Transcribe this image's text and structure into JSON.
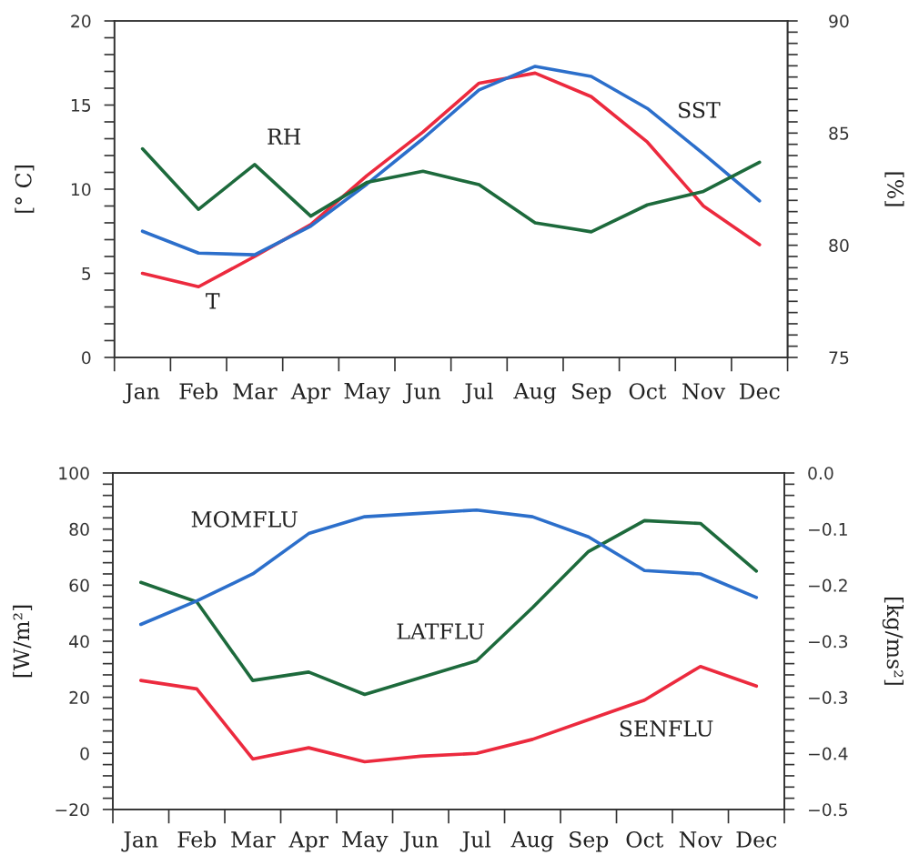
{
  "chart_data": [
    {
      "type": "line",
      "categories": [
        "Jan",
        "Feb",
        "Mar",
        "Apr",
        "May",
        "Jun",
        "Jul",
        "Aug",
        "Sep",
        "Oct",
        "Nov",
        "Dec"
      ],
      "ylabel": "[° C]",
      "y2label": "[%]",
      "ylim": [
        0,
        20
      ],
      "yticks": [
        0,
        {
          "value": 1,
          "label": null
        },
        {
          "value": 2,
          "label": null
        },
        {
          "value": 3,
          "label": null
        },
        {
          "value": 4,
          "label": null
        },
        5,
        {
          "value": 6,
          "label": null
        },
        {
          "value": 7,
          "label": null
        },
        {
          "value": 8,
          "label": null
        },
        {
          "value": 9,
          "label": null
        },
        10,
        {
          "value": 11,
          "label": null
        },
        {
          "value": 12,
          "label": null
        },
        {
          "value": 13,
          "label": null
        },
        {
          "value": 14,
          "label": null
        },
        15,
        {
          "value": 16,
          "label": null
        },
        {
          "value": 17,
          "label": null
        },
        {
          "value": 18,
          "label": null
        },
        {
          "value": 19,
          "label": null
        },
        20
      ],
      "y2lim": [
        75,
        90
      ],
      "y2ticks": [
        75,
        {
          "value": 75.5,
          "label": null
        },
        {
          "value": 76,
          "label": null
        },
        {
          "value": 76.5,
          "label": null
        },
        {
          "value": 77,
          "label": null
        },
        {
          "value": 77.5,
          "label": null
        },
        {
          "value": 78,
          "label": null
        },
        {
          "value": 78.5,
          "label": null
        },
        {
          "value": 79,
          "label": null
        },
        {
          "value": 79.5,
          "label": null
        },
        80,
        {
          "value": 80.5,
          "label": null
        },
        {
          "value": 81,
          "label": null
        },
        {
          "value": 81.5,
          "label": null
        },
        {
          "value": 82,
          "label": null
        },
        {
          "value": 82.5,
          "label": null
        },
        {
          "value": 83,
          "label": null
        },
        {
          "value": 83.5,
          "label": null
        },
        {
          "value": 84,
          "label": null
        },
        {
          "value": 84.5,
          "label": null
        },
        85,
        {
          "value": 85.5,
          "label": null
        },
        {
          "value": 86,
          "label": null
        },
        {
          "value": 86.5,
          "label": null
        },
        {
          "value": 87,
          "label": null
        },
        {
          "value": 87.5,
          "label": null
        },
        {
          "value": 88,
          "label": null
        },
        {
          "value": 88.5,
          "label": null
        },
        {
          "value": 89,
          "label": null
        },
        {
          "value": 89.5,
          "label": null
        },
        90
      ],
      "series": [
        {
          "name": "T",
          "color": "#ec2a3e",
          "values": [
            5.0,
            4.2,
            6.0,
            7.9,
            10.8,
            13.4,
            16.3,
            16.9,
            15.5,
            12.8,
            9.0,
            6.7
          ]
        },
        {
          "name": "SST",
          "color": "#2c6fcb",
          "values": [
            7.5,
            6.2,
            6.1,
            7.8,
            10.3,
            13.0,
            15.9,
            17.3,
            16.7,
            14.8,
            12.1,
            9.3
          ]
        },
        {
          "name": "RH",
          "color": "#1d6a3c",
          "axis": "y2",
          "values": [
            84.3,
            81.6,
            83.6,
            81.3,
            82.8,
            83.3,
            82.7,
            81.0,
            80.6,
            81.8,
            82.4,
            83.7
          ]
        }
      ]
    },
    {
      "type": "line",
      "categories": [
        "Jan",
        "Feb",
        "Mar",
        "Apr",
        "May",
        "Jun",
        "Jul",
        "Aug",
        "Sep",
        "Oct",
        "Nov",
        "Dec"
      ],
      "ylabel": "[W/m²]",
      "y2label": "[kg/ms²]",
      "ylim": [
        -20,
        100
      ],
      "yticks": [
        {
          "value": -20,
          "label": "−20"
        },
        {
          "value": -16,
          "label": null
        },
        {
          "value": -12,
          "label": null
        },
        {
          "value": -8,
          "label": null
        },
        {
          "value": -4,
          "label": null
        },
        0,
        {
          "value": 4,
          "label": null
        },
        {
          "value": 8,
          "label": null
        },
        {
          "value": 12,
          "label": null
        },
        {
          "value": 16,
          "label": null
        },
        20,
        {
          "value": 24,
          "label": null
        },
        {
          "value": 28,
          "label": null
        },
        {
          "value": 32,
          "label": null
        },
        {
          "value": 36,
          "label": null
        },
        40,
        {
          "value": 44,
          "label": null
        },
        {
          "value": 48,
          "label": null
        },
        {
          "value": 52,
          "label": null
        },
        {
          "value": 56,
          "label": null
        },
        60,
        {
          "value": 64,
          "label": null
        },
        {
          "value": 68,
          "label": null
        },
        {
          "value": 72,
          "label": null
        },
        {
          "value": 76,
          "label": null
        },
        80,
        {
          "value": 84,
          "label": null
        },
        {
          "value": 88,
          "label": null
        },
        {
          "value": 92,
          "label": null
        },
        {
          "value": 96,
          "label": null
        },
        100
      ],
      "y2lim": [
        -0.5,
        0.0
      ],
      "y2ticks": [
        {
          "value": -0.5,
          "label": "−0.5"
        },
        {
          "value": -0.4833,
          "label": null
        },
        {
          "value": -0.4667,
          "label": null
        },
        {
          "value": -0.45,
          "label": null
        },
        {
          "value": -0.4333,
          "label": null
        },
        {
          "value": -0.4167,
          "label": "−0.4"
        },
        {
          "value": -0.4,
          "label": null
        },
        {
          "value": -0.3833,
          "label": null
        },
        {
          "value": -0.3667,
          "label": null
        },
        {
          "value": -0.35,
          "label": null
        },
        {
          "value": -0.3333,
          "label": "−0.3"
        },
        {
          "value": -0.3167,
          "label": null
        },
        {
          "value": -0.3,
          "label": null
        },
        {
          "value": -0.2833,
          "label": null
        },
        {
          "value": -0.2667,
          "label": null
        },
        {
          "value": -0.25,
          "label": "−0.3"
        },
        {
          "value": -0.2333,
          "label": null
        },
        {
          "value": -0.2167,
          "label": null
        },
        {
          "value": -0.2,
          "label": null
        },
        {
          "value": -0.1833,
          "label": null
        },
        {
          "value": -0.1667,
          "label": "−0.2"
        },
        {
          "value": -0.15,
          "label": null
        },
        {
          "value": -0.1333,
          "label": null
        },
        {
          "value": -0.1167,
          "label": null
        },
        {
          "value": -0.1,
          "label": null
        },
        {
          "value": -0.0833,
          "label": "−0.1"
        },
        {
          "value": -0.0667,
          "label": null
        },
        {
          "value": -0.05,
          "label": null
        },
        {
          "value": -0.0333,
          "label": null
        },
        {
          "value": -0.0167,
          "label": null
        },
        {
          "value": 0.0,
          "label": "0.0"
        }
      ],
      "series": [
        {
          "name": "MOMFLU",
          "color": "#2c6fcb",
          "axis": "y2",
          "values": [
            -0.225,
            -0.19,
            -0.15,
            -0.09,
            -0.065,
            -0.06,
            -0.055,
            -0.065,
            -0.095,
            -0.145,
            -0.15,
            -0.185
          ]
        },
        {
          "name": "LATFLU",
          "color": "#1d6a3c",
          "values": [
            61,
            54,
            26,
            29,
            21,
            27,
            33,
            52,
            72,
            83,
            82,
            65
          ]
        },
        {
          "name": "SENFLU",
          "color": "#ec2a3e",
          "values": [
            26,
            23,
            -2,
            2,
            -3,
            -1,
            0,
            5,
            12,
            19,
            31,
            24
          ]
        }
      ]
    }
  ]
}
